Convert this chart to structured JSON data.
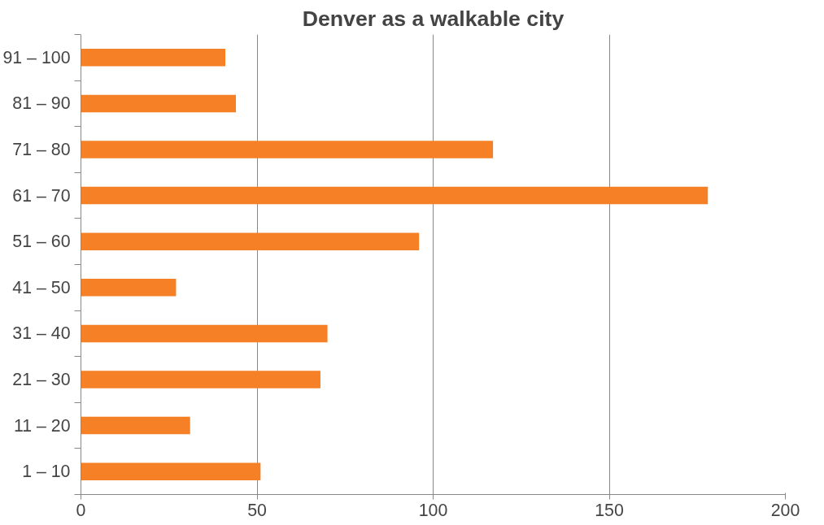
{
  "chart_data": {
    "type": "bar",
    "orientation": "horizontal",
    "title": "Denver as a walkable city",
    "categories": [
      "91 – 100",
      "81 – 90",
      "71 – 80",
      "61 – 70",
      "51 – 60",
      "41 – 50",
      "31 – 40",
      "21 – 30",
      "11 – 20",
      "1 – 10"
    ],
    "values": [
      41,
      44,
      117,
      178,
      96,
      27,
      70,
      68,
      31,
      51
    ],
    "color": "#f58025",
    "xlim": [
      0,
      200
    ],
    "xticks": [
      0,
      50,
      100,
      150,
      200
    ],
    "grid": "x"
  }
}
